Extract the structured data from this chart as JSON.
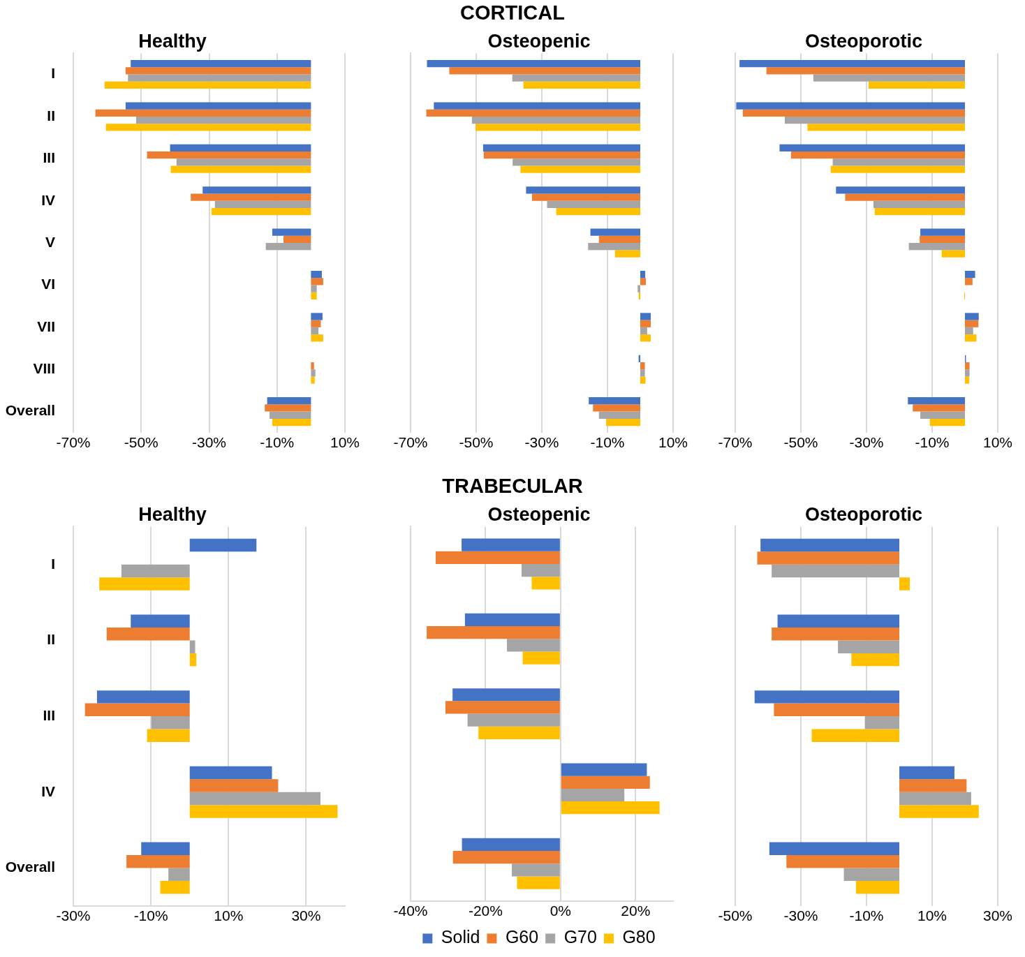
{
  "chart_data": [
    {
      "type": "bar",
      "orientation": "horizontal",
      "title": "Healthy",
      "annotations": [
        "CORTICAL"
      ],
      "categories": [
        "I",
        "II",
        "III",
        "IV",
        "V",
        "VI",
        "VII",
        "VIII",
        "Overall"
      ],
      "xlim": [
        -70,
        10
      ],
      "xticks": [
        {
          "value": -70,
          "label": "-70%"
        },
        {
          "value": -50,
          "label": "-50%"
        },
        {
          "value": -30,
          "label": "-30%"
        },
        {
          "value": -10,
          "label": "-10%"
        },
        {
          "value": 10,
          "label": "10%"
        }
      ],
      "grid": "x",
      "legend": false,
      "series": [
        {
          "color": "#4472c4",
          "values": [
            -53.1,
            -54.6,
            -41.5,
            -31.9,
            -11.4,
            3.2,
            3.4,
            0,
            -12.9
          ]
        },
        {
          "color": "#ed7d31",
          "values": [
            -54.6,
            -63.5,
            -48.3,
            -35.4,
            -8.1,
            3.6,
            2.9,
            0.9,
            -13.6
          ]
        },
        {
          "color": "#a5a5a5",
          "values": [
            -53.9,
            -51.5,
            -39.6,
            -28.3,
            -13.3,
            1.7,
            2.2,
            1.3,
            -12.2
          ]
        },
        {
          "color": "#ffc000",
          "values": [
            -60.8,
            -60.4,
            -41.3,
            -29.3,
            0,
            1.7,
            3.6,
            1.1,
            -11.4
          ]
        }
      ]
    },
    {
      "type": "bar",
      "orientation": "horizontal",
      "title": "Osteopenic",
      "categories": [
        null,
        null,
        null,
        null,
        null,
        null,
        null,
        null,
        null
      ],
      "xlim": [
        -70,
        10
      ],
      "xticks": [
        {
          "value": -70,
          "label": "-70%"
        },
        {
          "value": -50,
          "label": "-50%"
        },
        {
          "value": -30,
          "label": "-30%"
        },
        {
          "value": -10,
          "label": "-10%"
        },
        {
          "value": 10,
          "label": "10%"
        }
      ],
      "grid": "x",
      "legend": false,
      "tick_labels": "x",
      "series": [
        {
          "color": "#4472c4",
          "values": [
            -65.0,
            -62.9,
            -47.9,
            -34.8,
            -15.2,
            1.5,
            3.2,
            -0.5,
            -15.7
          ]
        },
        {
          "color": "#ed7d31",
          "values": [
            -58.2,
            -65.2,
            -47.7,
            -33.0,
            -12.6,
            1.7,
            3.2,
            1.4,
            -14.4
          ]
        },
        {
          "color": "#a5a5a5",
          "values": [
            -39.0,
            -51.3,
            -38.9,
            -28.4,
            -15.9,
            -0.8,
            2.1,
            1.4,
            -12.6
          ]
        },
        {
          "color": "#ffc000",
          "values": [
            -35.6,
            -50.2,
            -36.5,
            -25.6,
            -7.7,
            -0.5,
            3.2,
            1.6,
            -10.4
          ]
        }
      ]
    },
    {
      "type": "bar",
      "orientation": "horizontal",
      "title": "Osteoporotic",
      "categories": [
        null,
        null,
        null,
        null,
        null,
        null,
        null,
        null,
        null
      ],
      "xlim": [
        -70,
        10
      ],
      "xticks": [
        {
          "value": -70,
          "label": "-70%"
        },
        {
          "value": -50,
          "label": "-50%"
        },
        {
          "value": -30,
          "label": "-30%"
        },
        {
          "value": -10,
          "label": "-10%"
        },
        {
          "value": 10,
          "label": "10%"
        }
      ],
      "grid": "x",
      "legend": false,
      "tick_labels": "x",
      "series": [
        {
          "color": "#4472c4",
          "values": [
            -68.7,
            -69.7,
            -56.5,
            -39.3,
            -13.6,
            3.1,
            4.2,
            0.3,
            -17.4
          ]
        },
        {
          "color": "#ed7d31",
          "values": [
            -60.5,
            -67.7,
            -53.0,
            -36.5,
            -13.8,
            2.3,
            4.1,
            1.4,
            -15.9
          ]
        },
        {
          "color": "#a5a5a5",
          "values": [
            -46.2,
            -54.9,
            -40.3,
            -27.9,
            -17.1,
            0,
            2.5,
            1.4,
            -13.6
          ]
        },
        {
          "color": "#ffc000",
          "values": [
            -29.4,
            -48.0,
            -40.9,
            -27.5,
            -7.1,
            -0.2,
            3.5,
            1.3,
            -10.7
          ]
        }
      ]
    },
    {
      "type": "bar",
      "orientation": "horizontal",
      "title": "Healthy",
      "annotations": [
        "TRABECULAR"
      ],
      "categories": [
        "I",
        "II",
        "III",
        "IV",
        "Overall"
      ],
      "xlim": [
        -30,
        40
      ],
      "xticks": [
        {
          "value": -30,
          "label": "-30%"
        },
        {
          "value": -10,
          "label": "-10%"
        },
        {
          "value": 10,
          "label": "10%"
        },
        {
          "value": 30,
          "label": "30%"
        }
      ],
      "grid": "x",
      "legend": false,
      "series": [
        {
          "color": "#4472c4",
          "values": [
            17.2,
            -15.2,
            -23.9,
            21.2,
            -12.5
          ]
        },
        {
          "color": "#ed7d31",
          "values": [
            0,
            -21.4,
            -27.0,
            22.8,
            -16.3
          ]
        },
        {
          "color": "#a5a5a5",
          "values": [
            -17.6,
            1.4,
            -9.9,
            33.7,
            -5.5
          ]
        },
        {
          "color": "#ffc000",
          "values": [
            -23.3,
            1.7,
            -11.0,
            38.1,
            -7.6
          ]
        }
      ]
    },
    {
      "type": "bar",
      "orientation": "horizontal",
      "title": "Osteopenic",
      "categories": [
        null,
        null,
        null,
        null,
        null
      ],
      "xlim": [
        -40,
        30
      ],
      "xticks": [
        {
          "value": -40,
          "label": "-40%"
        },
        {
          "value": -20,
          "label": "-20%"
        },
        {
          "value": 0,
          "label": "0%"
        },
        {
          "value": 20,
          "label": "20%"
        }
      ],
      "grid": "x",
      "legend": "bottom",
      "tick_labels": "x",
      "series": [
        {
          "name": "Solid",
          "color": "#4472c4",
          "values": [
            -26.4,
            -25.5,
            -28.8,
            23.0,
            -26.3
          ]
        },
        {
          "name": "G60",
          "color": "#ed7d31",
          "values": [
            -33.3,
            -35.7,
            -30.7,
            23.8,
            -28.7
          ]
        },
        {
          "name": "G70",
          "color": "#a5a5a5",
          "values": [
            -10.4,
            -14.3,
            -24.8,
            17.0,
            -13.0
          ]
        },
        {
          "name": "G80",
          "color": "#ffc000",
          "values": [
            -7.7,
            -10.1,
            -21.9,
            26.4,
            -11.6
          ]
        }
      ]
    },
    {
      "type": "bar",
      "orientation": "horizontal",
      "title": "Osteoporotic",
      "categories": [
        null,
        null,
        null,
        null,
        null
      ],
      "xlim": [
        -50,
        30
      ],
      "xticks": [
        {
          "value": -50,
          "label": "-50%"
        },
        {
          "value": -30,
          "label": "-30%"
        },
        {
          "value": -10,
          "label": "-10%"
        },
        {
          "value": 10,
          "label": "10%"
        },
        {
          "value": 30,
          "label": "30%"
        }
      ],
      "grid": "x",
      "legend": false,
      "tick_labels": "x",
      "series": [
        {
          "color": "#4472c4",
          "values": [
            -42.3,
            -37.1,
            -44.1,
            16.8,
            -39.6
          ]
        },
        {
          "color": "#ed7d31",
          "values": [
            -43.3,
            -38.9,
            -38.2,
            20.5,
            -34.4
          ]
        },
        {
          "color": "#a5a5a5",
          "values": [
            -38.9,
            -18.7,
            -10.5,
            21.9,
            -16.9
          ]
        },
        {
          "color": "#ffc000",
          "values": [
            3.2,
            -14.6,
            -26.7,
            24.2,
            -13.2
          ]
        }
      ]
    }
  ]
}
